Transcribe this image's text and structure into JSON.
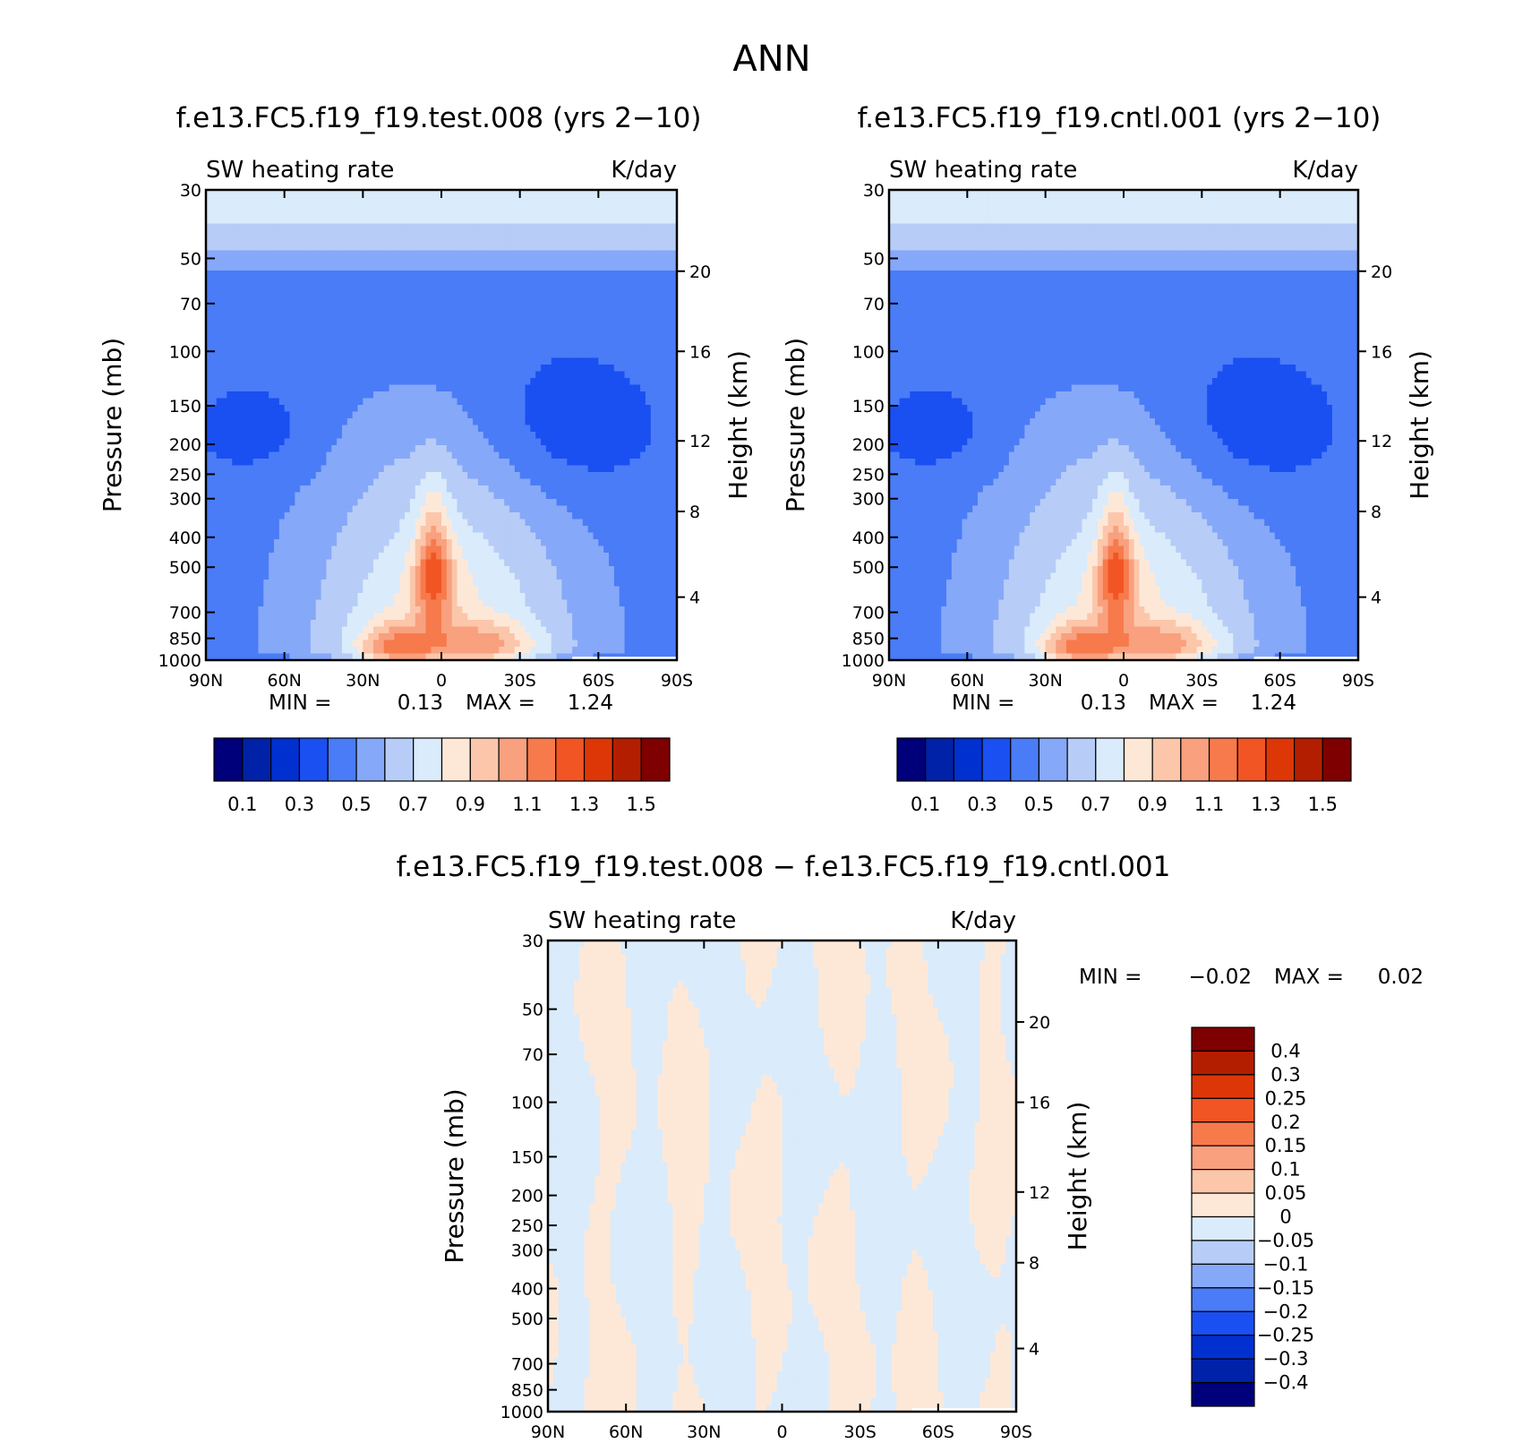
{
  "figure": {
    "main_title": "ANN",
    "left_plot_title": "f.e13.FC5.f19_f19.test.008 (yrs 2−10)",
    "right_plot_title": "f.e13.FC5.f19_f19.cntl.001 (yrs 2−10)",
    "diff_plot_title": "f.e13.FC5.f19_f19.test.008 − f.e13.FC5.f19_f19.cntl.001"
  },
  "chart_data": [
    {
      "id": "test",
      "type": "heatmap",
      "title": "f.e13.FC5.f19_f19.test.008 (yrs 2−10)",
      "variable": "SW heating rate",
      "units": "K/day",
      "xlabel": "",
      "ylabel": "Pressure (mb)",
      "y2label": "Height (km)",
      "x_tick_labels": [
        "90N",
        "60N",
        "30N",
        "0",
        "30S",
        "60S",
        "90S"
      ],
      "x_ticks": [
        90,
        60,
        30,
        0,
        -30,
        -60,
        -90
      ],
      "xlim": [
        90,
        -90
      ],
      "y_tick_labels": [
        "30",
        "50",
        "70",
        "100",
        "150",
        "200",
        "250",
        "300",
        "400",
        "500",
        "700",
        "850",
        "1000"
      ],
      "y_ticks": [
        30,
        50,
        70,
        100,
        150,
        200,
        250,
        300,
        400,
        500,
        700,
        850,
        1000
      ],
      "y_scale": "log",
      "ylim": [
        1000,
        30
      ],
      "y2_ticks": [
        "20",
        "16",
        "12",
        "8",
        "4"
      ],
      "y2_pressure": [
        55,
        100,
        195,
        330,
        625
      ],
      "stats": {
        "min_label": "MIN =",
        "min": "0.13",
        "max_label": "MAX =",
        "max": "1.24"
      },
      "colorbar": {
        "orientation": "horizontal",
        "labels": [
          "0.1",
          "0.3",
          "0.5",
          "0.7",
          "0.9",
          "1.1",
          "1.3",
          "1.5"
        ],
        "levels": [
          0.1,
          0.2,
          0.3,
          0.4,
          0.5,
          0.6,
          0.7,
          0.8,
          0.9,
          1.0,
          1.1,
          1.2,
          1.3,
          1.4,
          1.5
        ],
        "colors": [
          "#00007a",
          "#0022a8",
          "#0030d0",
          "#1a4ff2",
          "#4a7cf7",
          "#86a8f8",
          "#b7cdf7",
          "#daebfb",
          "#fde8d8",
          "#fcc6aa",
          "#f9a07e",
          "#f77a4c",
          "#f25524",
          "#dd3708",
          "#b41e00",
          "#7f0000"
        ]
      }
    },
    {
      "id": "cntl",
      "type": "heatmap",
      "title": "f.e13.FC5.f19_f19.cntl.001 (yrs 2−10)",
      "variable": "SW heating rate",
      "units": "K/day",
      "xlabel": "",
      "ylabel": "Pressure (mb)",
      "y2label": "Height (km)",
      "x_tick_labels": [
        "90N",
        "60N",
        "30N",
        "0",
        "30S",
        "60S",
        "90S"
      ],
      "x_ticks": [
        90,
        60,
        30,
        0,
        -30,
        -60,
        -90
      ],
      "xlim": [
        90,
        -90
      ],
      "y_tick_labels": [
        "30",
        "50",
        "70",
        "100",
        "150",
        "200",
        "250",
        "300",
        "400",
        "500",
        "700",
        "850",
        "1000"
      ],
      "y_ticks": [
        30,
        50,
        70,
        100,
        150,
        200,
        250,
        300,
        400,
        500,
        700,
        850,
        1000
      ],
      "y_scale": "log",
      "ylim": [
        1000,
        30
      ],
      "y2_ticks": [
        "20",
        "16",
        "12",
        "8",
        "4"
      ],
      "y2_pressure": [
        55,
        100,
        195,
        330,
        625
      ],
      "stats": {
        "min_label": "MIN =",
        "min": "0.13",
        "max_label": "MAX =",
        "max": "1.24"
      },
      "colorbar": {
        "orientation": "horizontal",
        "labels": [
          "0.1",
          "0.3",
          "0.5",
          "0.7",
          "0.9",
          "1.1",
          "1.3",
          "1.5"
        ],
        "levels": [
          0.1,
          0.2,
          0.3,
          0.4,
          0.5,
          0.6,
          0.7,
          0.8,
          0.9,
          1.0,
          1.1,
          1.2,
          1.3,
          1.4,
          1.5
        ],
        "colors": [
          "#00007a",
          "#0022a8",
          "#0030d0",
          "#1a4ff2",
          "#4a7cf7",
          "#86a8f8",
          "#b7cdf7",
          "#daebfb",
          "#fde8d8",
          "#fcc6aa",
          "#f9a07e",
          "#f77a4c",
          "#f25524",
          "#dd3708",
          "#b41e00",
          "#7f0000"
        ]
      }
    },
    {
      "id": "diff",
      "type": "heatmap",
      "title": "f.e13.FC5.f19_f19.test.008 − f.e13.FC5.f19_f19.cntl.001",
      "variable": "SW heating rate",
      "units": "K/day",
      "xlabel": "",
      "ylabel": "Pressure (mb)",
      "y2label": "Height (km)",
      "x_tick_labels": [
        "90N",
        "60N",
        "30N",
        "0",
        "30S",
        "60S",
        "90S"
      ],
      "x_ticks": [
        90,
        60,
        30,
        0,
        -30,
        -60,
        -90
      ],
      "xlim": [
        90,
        -90
      ],
      "y_tick_labels": [
        "30",
        "50",
        "70",
        "100",
        "150",
        "200",
        "250",
        "300",
        "400",
        "500",
        "700",
        "850",
        "1000"
      ],
      "y_ticks": [
        30,
        50,
        70,
        100,
        150,
        200,
        250,
        300,
        400,
        500,
        700,
        850,
        1000
      ],
      "y_scale": "log",
      "ylim": [
        1000,
        30
      ],
      "y2_ticks": [
        "20",
        "16",
        "12",
        "8",
        "4"
      ],
      "y2_pressure": [
        55,
        100,
        195,
        330,
        625
      ],
      "stats": {
        "min_label": "MIN =",
        "min": "−0.02",
        "max_label": "MAX =",
        "max": "0.02"
      },
      "colorbar": {
        "orientation": "vertical",
        "labels": [
          "0.4",
          "0.3",
          "0.25",
          "0.2",
          "0.15",
          "0.1",
          "0.05",
          "0",
          "−0.05",
          "−0.1",
          "−0.15",
          "−0.2",
          "−0.25",
          "−0.3",
          "−0.4"
        ],
        "levels": [
          0.4,
          0.3,
          0.25,
          0.2,
          0.15,
          0.1,
          0.05,
          0,
          -0.05,
          -0.1,
          -0.15,
          -0.2,
          -0.25,
          -0.3,
          -0.4
        ],
        "colors": [
          "#7f0000",
          "#b41e00",
          "#dd3708",
          "#f25524",
          "#f77a4c",
          "#f9a07e",
          "#fcc6aa",
          "#fde8d8",
          "#daebfb",
          "#b7cdf7",
          "#86a8f8",
          "#4a7cf7",
          "#1a4ff2",
          "#0030d0",
          "#0022a8",
          "#00007a"
        ]
      }
    }
  ]
}
